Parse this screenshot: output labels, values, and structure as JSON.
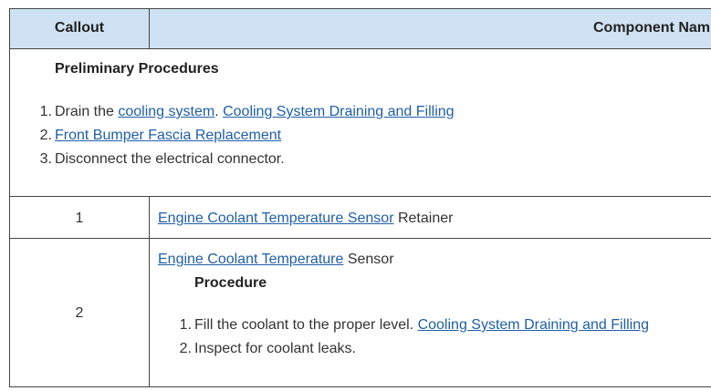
{
  "table": {
    "header": {
      "callout": "Callout",
      "component": "Component Nam"
    },
    "preliminary": {
      "title": "Preliminary Procedures",
      "steps": [
        {
          "marker": "1.",
          "parts": [
            {
              "text": "Drain the ",
              "link": false
            },
            {
              "text": "cooling system",
              "link": true
            },
            {
              "text": ". ",
              "link": false
            },
            {
              "text": "Cooling System Draining and Filling",
              "link": true
            }
          ]
        },
        {
          "marker": "2.",
          "parts": [
            {
              "text": "Front Bumper Fascia Replacement",
              "link": true
            }
          ]
        },
        {
          "marker": "3.",
          "parts": [
            {
              "text": "Disconnect the electrical connector.",
              "link": false
            }
          ]
        }
      ]
    },
    "rows": [
      {
        "callout": "1",
        "parts": [
          {
            "text": "Engine Coolant Temperature Sensor",
            "link": true
          },
          {
            "text": " Retainer",
            "link": false
          }
        ]
      },
      {
        "callout": "2",
        "parts": [
          {
            "text": "Engine Coolant Temperature",
            "link": true
          },
          {
            "text": " Sensor",
            "link": false
          }
        ],
        "procedure": {
          "title": "Procedure",
          "steps": [
            {
              "marker": "1.",
              "parts": [
                {
                  "text": "Fill the coolant to the proper level. ",
                  "link": false
                },
                {
                  "text": "Cooling System Draining and Filling",
                  "link": true
                }
              ]
            },
            {
              "marker": "2.",
              "parts": [
                {
                  "text": "Inspect for coolant leaks.",
                  "link": false
                }
              ]
            }
          ]
        }
      }
    ]
  }
}
